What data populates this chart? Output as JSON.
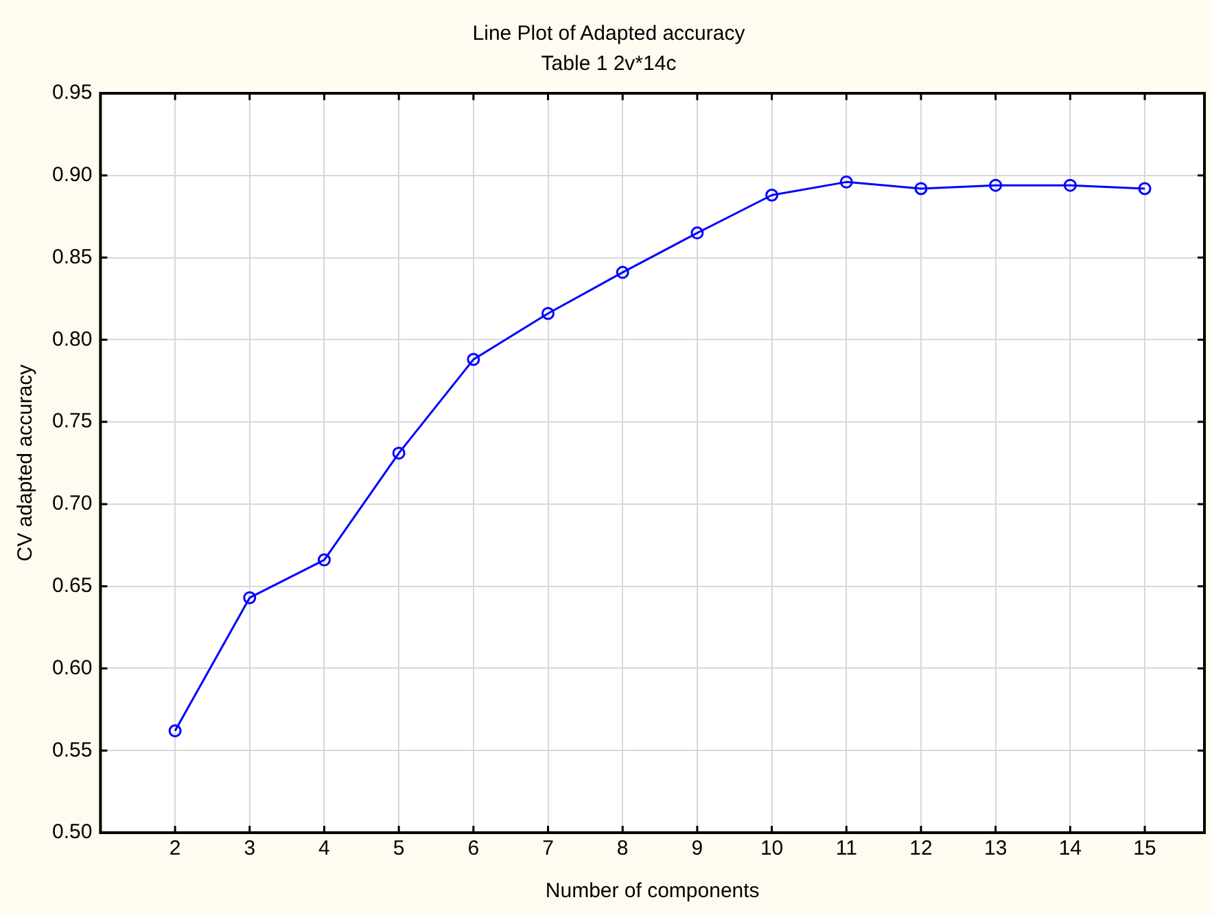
{
  "chart_data": {
    "type": "line",
    "title": "Line Plot of Adapted accuracy",
    "subtitle": "Table 1 2v*14c",
    "xlabel": "Number of components",
    "ylabel": "CV adapted accuracy",
    "x": [
      2,
      3,
      4,
      5,
      6,
      7,
      8,
      9,
      10,
      11,
      12,
      13,
      14,
      15
    ],
    "series": [
      {
        "color": "#0000ff",
        "values": [
          0.562,
          0.643,
          0.666,
          0.731,
          0.788,
          0.816,
          0.841,
          0.865,
          0.888,
          0.896,
          0.892,
          0.894,
          0.894,
          0.892
        ]
      }
    ],
    "xlim": [
      1,
      15.8
    ],
    "xticks": [
      2,
      3,
      4,
      5,
      6,
      7,
      8,
      9,
      10,
      11,
      12,
      13,
      14,
      15
    ],
    "ylim": [
      0.5,
      0.95
    ],
    "yticks": [
      {
        "value": 0.5,
        "label": "0.50"
      },
      {
        "value": 0.55,
        "label": "0.55"
      },
      {
        "value": 0.6,
        "label": "0.60"
      },
      {
        "value": 0.65,
        "label": "0.65"
      },
      {
        "value": 0.7,
        "label": "0.70"
      },
      {
        "value": 0.75,
        "label": "0.75"
      },
      {
        "value": 0.8,
        "label": "0.80"
      },
      {
        "value": 0.85,
        "label": "0.85"
      },
      {
        "value": 0.9,
        "label": "0.90"
      },
      {
        "value": 0.95,
        "label": "0.95"
      }
    ],
    "grid": true,
    "legend": false,
    "marker": "circle",
    "line_style": "solid"
  }
}
